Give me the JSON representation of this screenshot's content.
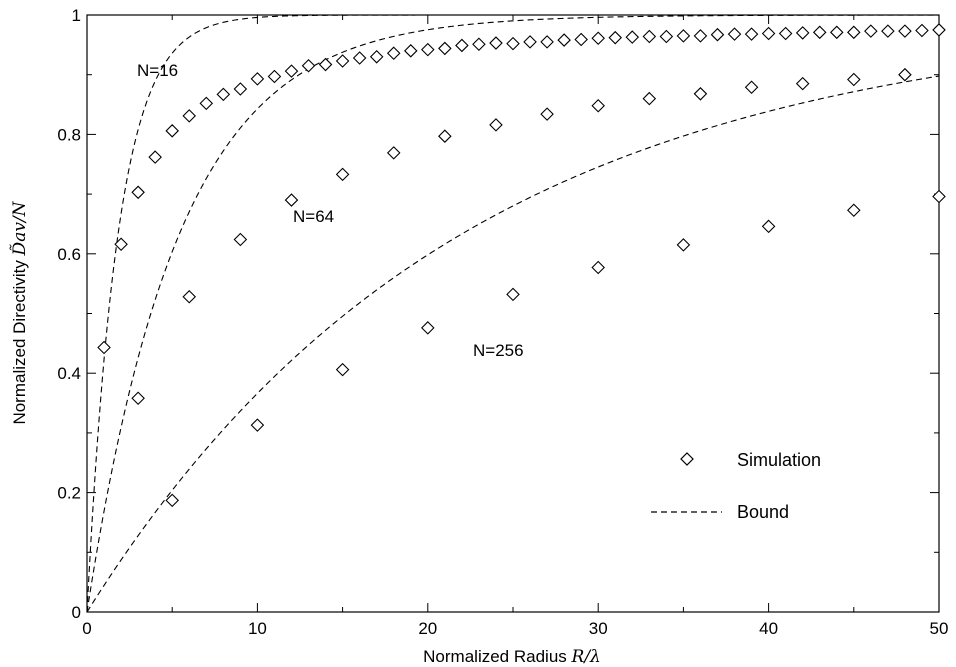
{
  "chart_data": {
    "type": "scatter",
    "title": "",
    "xlabel": "Normalized Radius",
    "xlabel_math": "R/λ",
    "ylabel": "Normalized Directivity",
    "ylabel_math": "D̃av/N",
    "xlim": [
      0,
      50
    ],
    "ylim": [
      0,
      1
    ],
    "x_ticks": [
      0,
      10,
      20,
      30,
      40,
      50
    ],
    "y_ticks": [
      0,
      0.2,
      0.4,
      0.6,
      0.8,
      1
    ],
    "y_tick_labels": [
      "0",
      "0.2",
      "0.4",
      "0.6",
      "0.8",
      "1"
    ],
    "grid": false,
    "legend": {
      "position": "bottom-right",
      "entries": [
        {
          "label": "Simulation",
          "marker": "diamond"
        },
        {
          "label": "Bound",
          "line": "dashed"
        }
      ]
    },
    "annotations": [
      "N=16",
      "N=64",
      "N=256"
    ],
    "series": [
      {
        "name": "N=16",
        "simulation": {
          "x": [
            1,
            2,
            3,
            4,
            5,
            6,
            7,
            8,
            9,
            10,
            11,
            12,
            13,
            14,
            15,
            16,
            17,
            18,
            19,
            20,
            21,
            22,
            23,
            24,
            25,
            26,
            27,
            28,
            29,
            30,
            31,
            32,
            33,
            34,
            35,
            36,
            37,
            38,
            39,
            40,
            41,
            42,
            43,
            44,
            45,
            46,
            47,
            48,
            49,
            50
          ],
          "y": [
            0.443,
            0.616,
            0.703,
            0.762,
            0.806,
            0.831,
            0.852,
            0.867,
            0.876,
            0.893,
            0.897,
            0.906,
            0.915,
            0.917,
            0.923,
            0.928,
            0.93,
            0.936,
            0.94,
            0.942,
            0.944,
            0.949,
            0.951,
            0.953,
            0.952,
            0.955,
            0.955,
            0.958,
            0.959,
            0.961,
            0.962,
            0.963,
            0.964,
            0.964,
            0.965,
            0.965,
            0.967,
            0.968,
            0.968,
            0.969,
            0.969,
            0.97,
            0.971,
            0.971,
            0.971,
            0.973,
            0.973,
            0.973,
            0.974,
            0.975
          ]
        },
        "bound": {
          "k": 0.55
        }
      },
      {
        "name": "N=64",
        "simulation": {
          "x": [
            3,
            6,
            9,
            12,
            15,
            18,
            21,
            24,
            27,
            30,
            33,
            36,
            39,
            42,
            45,
            48
          ],
          "y": [
            0.358,
            0.528,
            0.624,
            0.69,
            0.733,
            0.769,
            0.797,
            0.816,
            0.834,
            0.848,
            0.86,
            0.868,
            0.879,
            0.885,
            0.892,
            0.9
          ]
        },
        "bound": {
          "k": 0.185
        }
      },
      {
        "name": "N=256",
        "simulation": {
          "x": [
            5,
            10,
            15,
            20,
            25,
            30,
            35,
            40,
            45,
            50
          ],
          "y": [
            0.187,
            0.313,
            0.406,
            0.476,
            0.532,
            0.577,
            0.615,
            0.646,
            0.673,
            0.696
          ]
        },
        "bound": {
          "k": 0.0456
        }
      }
    ]
  }
}
